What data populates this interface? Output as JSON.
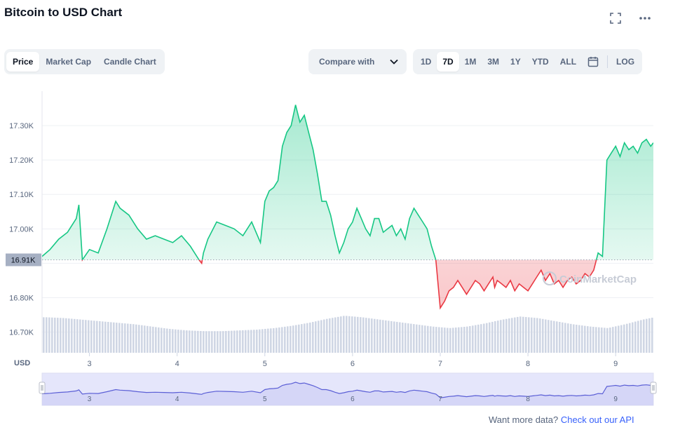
{
  "header": {
    "title": "Bitcoin to USD Chart"
  },
  "top_icons": [
    "fullscreen-icon",
    "more-icon"
  ],
  "tabs": [
    {
      "label": "Price",
      "active": true
    },
    {
      "label": "Market Cap",
      "active": false
    },
    {
      "label": "Candle Chart",
      "active": false
    }
  ],
  "compare": {
    "label": "Compare with"
  },
  "ranges": [
    {
      "label": "1D",
      "active": false
    },
    {
      "label": "7D",
      "active": true
    },
    {
      "label": "1M",
      "active": false
    },
    {
      "label": "3M",
      "active": false
    },
    {
      "label": "1Y",
      "active": false
    },
    {
      "label": "YTD",
      "active": false
    },
    {
      "label": "ALL",
      "active": false
    }
  ],
  "log_label": "LOG",
  "watermark": "CoinMarketCap",
  "footer": {
    "text": "Want more data? ",
    "link": "Check out our API"
  },
  "colors": {
    "up": "#16c784",
    "down": "#ea3943",
    "volume": "#cfd6e4",
    "navigator": "#5b5fd6",
    "navigator_fill": "#e5e6fb"
  },
  "chart_data": {
    "type": "area",
    "currency_label": "USD",
    "y_ticks": [
      "16.70K",
      "16.80K",
      "16.90K",
      "17.00K",
      "17.10K",
      "17.20K",
      "17.30K"
    ],
    "ylim": [
      16.64,
      17.4
    ],
    "x_ticks": [
      "3",
      "4",
      "5",
      "6",
      "7",
      "8",
      "9"
    ],
    "x_tick_values": [
      3,
      4,
      5,
      6,
      7,
      8,
      9
    ],
    "xlim": [
      2.46,
      9.43
    ],
    "baseline": {
      "value": 16.91,
      "label": "16.91K"
    },
    "price": {
      "x": [
        2.46,
        2.55,
        2.65,
        2.75,
        2.85,
        2.88,
        2.9,
        2.92,
        3.0,
        3.1,
        3.2,
        3.3,
        3.35,
        3.45,
        3.55,
        3.65,
        3.75,
        3.85,
        3.95,
        4.05,
        4.15,
        4.25,
        4.28,
        4.3,
        4.35,
        4.45,
        4.55,
        4.65,
        4.75,
        4.85,
        4.95,
        5.0,
        5.05,
        5.1,
        5.15,
        5.2,
        5.25,
        5.3,
        5.35,
        5.4,
        5.45,
        5.5,
        5.55,
        5.6,
        5.65,
        5.7,
        5.75,
        5.8,
        5.85,
        5.9,
        5.95,
        6.0,
        6.05,
        6.1,
        6.15,
        6.2,
        6.25,
        6.3,
        6.35,
        6.4,
        6.45,
        6.5,
        6.55,
        6.6,
        6.65,
        6.7,
        6.75,
        6.8,
        6.85,
        6.9,
        6.95,
        7.0,
        7.05,
        7.1,
        7.15,
        7.2,
        7.25,
        7.3,
        7.35,
        7.4,
        7.45,
        7.5,
        7.55,
        7.6,
        7.62,
        7.65,
        7.7,
        7.75,
        7.8,
        7.85,
        7.9,
        7.95,
        8.0,
        8.05,
        8.1,
        8.15,
        8.2,
        8.25,
        8.3,
        8.35,
        8.4,
        8.45,
        8.5,
        8.55,
        8.6,
        8.65,
        8.7,
        8.75,
        8.8,
        8.85,
        8.9,
        8.95,
        9.0,
        9.05,
        9.1,
        9.15,
        9.2,
        9.25,
        9.3,
        9.35,
        9.4,
        9.43
      ],
      "y": [
        16.92,
        16.94,
        16.97,
        16.99,
        17.03,
        17.07,
        16.99,
        16.91,
        16.94,
        16.93,
        17.0,
        17.08,
        17.06,
        17.04,
        17.0,
        16.97,
        16.98,
        16.97,
        16.96,
        16.98,
        16.95,
        16.91,
        16.9,
        16.93,
        16.97,
        17.02,
        17.01,
        17.0,
        16.98,
        17.02,
        16.96,
        17.08,
        17.11,
        17.12,
        17.14,
        17.24,
        17.28,
        17.3,
        17.36,
        17.31,
        17.33,
        17.28,
        17.23,
        17.16,
        17.08,
        17.08,
        17.04,
        16.98,
        16.93,
        16.96,
        17.0,
        17.02,
        17.06,
        17.03,
        17.0,
        16.98,
        17.03,
        17.03,
        16.99,
        17.0,
        17.01,
        16.98,
        17.0,
        16.97,
        17.03,
        17.06,
        17.04,
        17.02,
        17.0,
        16.95,
        16.91,
        16.77,
        16.79,
        16.82,
        16.83,
        16.85,
        16.83,
        16.81,
        16.83,
        16.85,
        16.84,
        16.82,
        16.84,
        16.86,
        16.83,
        16.85,
        16.84,
        16.83,
        16.85,
        16.82,
        16.84,
        16.83,
        16.82,
        16.84,
        16.86,
        16.88,
        16.85,
        16.87,
        16.84,
        16.85,
        16.83,
        16.85,
        16.86,
        16.84,
        16.85,
        16.87,
        16.86,
        16.88,
        16.93,
        16.92,
        17.2,
        17.22,
        17.24,
        17.21,
        17.25,
        17.23,
        17.24,
        17.22,
        17.25,
        17.26,
        17.24,
        17.25
      ]
    },
    "volume": [
      [
        2.5,
        0.92
      ],
      [
        2.7,
        0.9
      ],
      [
        2.9,
        0.86
      ],
      [
        3.1,
        0.82
      ],
      [
        3.3,
        0.78
      ],
      [
        3.5,
        0.74
      ],
      [
        3.7,
        0.68
      ],
      [
        3.9,
        0.62
      ],
      [
        4.1,
        0.58
      ],
      [
        4.3,
        0.56
      ],
      [
        4.5,
        0.56
      ],
      [
        4.7,
        0.58
      ],
      [
        4.9,
        0.6
      ],
      [
        5.1,
        0.64
      ],
      [
        5.3,
        0.7
      ],
      [
        5.5,
        0.78
      ],
      [
        5.7,
        0.88
      ],
      [
        5.9,
        0.96
      ],
      [
        6.1,
        0.92
      ],
      [
        6.3,
        0.86
      ],
      [
        6.5,
        0.8
      ],
      [
        6.7,
        0.74
      ],
      [
        6.9,
        0.68
      ],
      [
        7.1,
        0.64
      ],
      [
        7.3,
        0.68
      ],
      [
        7.5,
        0.76
      ],
      [
        7.7,
        0.86
      ],
      [
        7.9,
        0.94
      ],
      [
        8.1,
        0.9
      ],
      [
        8.3,
        0.82
      ],
      [
        8.5,
        0.74
      ],
      [
        8.7,
        0.68
      ],
      [
        8.9,
        0.64
      ],
      [
        9.1,
        0.74
      ],
      [
        9.3,
        0.86
      ],
      [
        9.43,
        0.92
      ]
    ]
  }
}
